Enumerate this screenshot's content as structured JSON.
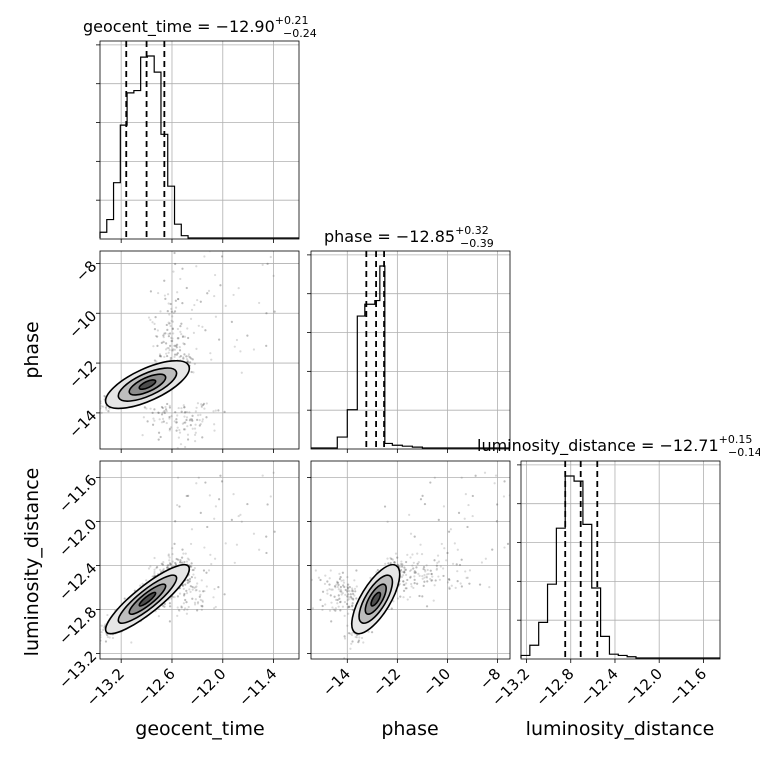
{
  "chart_data": {
    "type": "corner",
    "parameters": [
      "geocent_time",
      "phase",
      "luminosity_distance"
    ],
    "titles": [
      {
        "parameter": "geocent_time",
        "median": "−12.90",
        "plus": "+0.21",
        "minus": "−0.24"
      },
      {
        "parameter": "phase",
        "median": "−12.85",
        "plus": "+0.32",
        "minus": "−0.39"
      },
      {
        "parameter": "luminosity_distance",
        "median": "−12.71",
        "plus": "+0.15",
        "minus": "−0.14"
      }
    ],
    "ranges": {
      "geocent_time": [
        -13.45,
        -11.1
      ],
      "phase": [
        -15.45,
        -7.5
      ],
      "luminosity_distance": [
        -13.25,
        -11.45
      ]
    },
    "ticks": {
      "geocent_time": [
        -13.2,
        -12.6,
        -12.0,
        -11.4
      ],
      "phase": [
        -14,
        -12,
        -10,
        -8
      ],
      "luminosity_distance": [
        -13.2,
        -12.8,
        -12.4,
        -12.0,
        -11.6
      ]
    },
    "tick_labels": {
      "geocent_time": [
        "−13.2",
        "−12.6",
        "−12.0",
        "−11.4"
      ],
      "phase": [
        "−14",
        "−12",
        "−10",
        "−8"
      ],
      "luminosity_distance": [
        "−13.2",
        "−12.8",
        "−12.4",
        "−12.0",
        "−11.6"
      ]
    },
    "quantile_lines": {
      "geocent_time": [
        -13.14,
        -12.9,
        -12.69
      ],
      "phase": [
        -13.24,
        -12.85,
        -12.53
      ],
      "luminosity_distance": [
        -12.85,
        -12.71,
        -12.56
      ]
    },
    "histograms": {
      "geocent_time": {
        "edges": [
          -13.45,
          -13.37,
          -13.29,
          -13.21,
          -13.13,
          -13.05,
          -12.97,
          -12.89,
          -12.81,
          -12.73,
          -12.65,
          -12.57,
          -12.49,
          -12.41
        ],
        "counts": [
          0.05,
          0.16,
          0.48,
          0.98,
          1.26,
          1.28,
          1.57,
          1.58,
          1.44,
          0.9,
          0.45,
          0.12,
          0.02
        ]
      },
      "phase": {
        "edges": [
          -14.4,
          -14.0,
          -13.6,
          -13.3,
          -12.9,
          -12.7,
          -12.5,
          -12.2,
          -11.8,
          -11.4,
          -11.0
        ],
        "counts": [
          0.12,
          0.42,
          1.45,
          1.58,
          1.62,
          2.0,
          0.05,
          0.03,
          0.02,
          0.01
        ]
      },
      "luminosity_distance": {
        "edges": [
          -13.25,
          -13.17,
          -13.09,
          -13.01,
          -12.93,
          -12.85,
          -12.77,
          -12.69,
          -12.61,
          -12.53,
          -12.45,
          -12.37,
          -12.29,
          -12.21
        ],
        "counts": [
          0.02,
          0.1,
          0.28,
          0.58,
          1.02,
          1.43,
          1.39,
          1.05,
          0.55,
          0.17,
          0.03,
          0.02,
          0.01
        ]
      }
    },
    "grid": true,
    "colors": {
      "line": "#000000",
      "grid": "#b0b0b0",
      "scatter": "#555555",
      "contour_fill": [
        "#e6e6e6",
        "#bdbdbd",
        "#8c8c8c",
        "#4d4d4d"
      ]
    }
  }
}
